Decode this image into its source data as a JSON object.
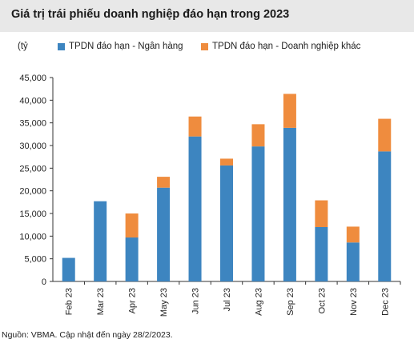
{
  "header": {
    "title": "Giá trị trái phiếu doanh nghiệp đáo hạn trong 2023"
  },
  "footer": {
    "source": "Nguồn: VBMA. Cập nhật đến ngày 28/2/2023."
  },
  "colors": {
    "bank": "#3d85c0",
    "other": "#ef8c3e",
    "title_bg": "#e8e8e8"
  },
  "chart_data": {
    "type": "bar",
    "stacked": true,
    "title": "Giá trị trái phiếu doanh nghiệp đáo hạn trong 2023",
    "unit_label": "(tỷ",
    "legend_position": "top",
    "grid": false,
    "categories": [
      "Feb 23",
      "Mar 23",
      "Apr 23",
      "May 23",
      "Jun 23",
      "Jul 23",
      "Aug 23",
      "Sep 23",
      "Oct 23",
      "Nov 23",
      "Dec 23"
    ],
    "series": [
      {
        "name": "TPDN đáo hạn - Ngân hàng",
        "color": "#3d85c0",
        "values": [
          5200,
          17700,
          9700,
          20700,
          32000,
          25600,
          29800,
          33900,
          12000,
          8600,
          28700
        ]
      },
      {
        "name": "TPDN đáo hạn - Doanh nghiệp khác",
        "color": "#ef8c3e",
        "values": [
          0,
          0,
          5300,
          2400,
          4400,
          1500,
          4900,
          7500,
          5900,
          3500,
          7200
        ]
      }
    ],
    "ylim": [
      0,
      45000
    ],
    "yticks": [
      0,
      5000,
      10000,
      15000,
      20000,
      25000,
      30000,
      35000,
      40000,
      45000
    ],
    "ytick_labels": [
      "0",
      "5,000",
      "10,000",
      "15,000",
      "20,000",
      "25,000",
      "30,000",
      "35,000",
      "40,000",
      "45,000"
    ]
  }
}
